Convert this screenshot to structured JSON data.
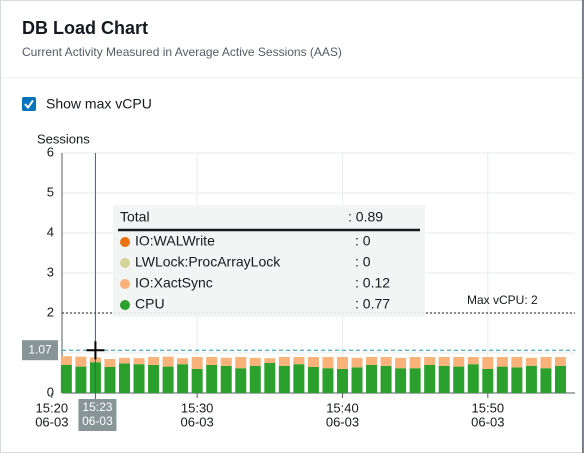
{
  "header": {
    "title": "DB Load Chart",
    "subtitle": "Current Activity Measured in Average Active Sessions (AAS)"
  },
  "checkbox": {
    "label": "Show max vCPU",
    "checked": true
  },
  "chart_data": {
    "type": "stacked-bar",
    "y_label": "Sessions",
    "xlim": [
      20.7,
      56
    ],
    "xticks": [
      {
        "value": 20,
        "label": "15:20",
        "date": "06-03"
      },
      {
        "value": 30,
        "label": "15:30",
        "date": "06-03"
      },
      {
        "value": 40,
        "label": "15:40",
        "date": "06-03"
      },
      {
        "value": 50,
        "label": "15:50",
        "date": "06-03"
      }
    ],
    "ylim": [
      0,
      6
    ],
    "yticks": [
      0,
      1,
      2,
      3,
      4,
      5,
      6
    ],
    "grid": true,
    "x": [
      21,
      22,
      23,
      24,
      25,
      26,
      27,
      28,
      29,
      30,
      31,
      32,
      33,
      34,
      35,
      36,
      37,
      38,
      39,
      40,
      41,
      42,
      43,
      44,
      45,
      46,
      47,
      48,
      49,
      50,
      51,
      52,
      53,
      54,
      55
    ],
    "series": [
      {
        "name": "CPU",
        "color": "#2ca02c",
        "values": [
          0.7,
          0.66,
          0.77,
          0.65,
          0.74,
          0.72,
          0.7,
          0.66,
          0.72,
          0.6,
          0.7,
          0.68,
          0.62,
          0.68,
          0.75,
          0.68,
          0.72,
          0.65,
          0.62,
          0.6,
          0.64,
          0.7,
          0.68,
          0.62,
          0.62,
          0.7,
          0.68,
          0.66,
          0.72,
          0.6,
          0.66,
          0.64,
          0.68,
          0.62,
          0.68
        ]
      },
      {
        "name": "IO:XactSync",
        "color": "#f8b27a",
        "values": [
          0.22,
          0.25,
          0.12,
          0.2,
          0.14,
          0.15,
          0.2,
          0.25,
          0.15,
          0.3,
          0.2,
          0.2,
          0.28,
          0.2,
          0.12,
          0.22,
          0.18,
          0.25,
          0.28,
          0.3,
          0.24,
          0.2,
          0.22,
          0.26,
          0.28,
          0.2,
          0.22,
          0.24,
          0.18,
          0.3,
          0.24,
          0.26,
          0.2,
          0.28,
          0.22
        ]
      }
    ],
    "max_vcpu": {
      "value": 2,
      "label": "Max vCPU: 2"
    },
    "crosshair": {
      "x": 23,
      "x_label": "15:23",
      "date_label": "06-03",
      "y": 1.07
    },
    "tooltip": {
      "title": "Total",
      "total": 0.89,
      "total_label": ": 0.89",
      "items": [
        {
          "name": "IO:WALWrite",
          "color": "#ec7211",
          "value": 0,
          "value_label": ": 0"
        },
        {
          "name": "LWLock:ProcArrayLock",
          "color": "#d5d59a",
          "value": 0,
          "value_label": ": 0"
        },
        {
          "name": "IO:XactSync",
          "color": "#f8b27a",
          "value": 0.12,
          "value_label": ": 0.12"
        },
        {
          "name": "CPU",
          "color": "#2ca02c",
          "value": 0.77,
          "value_label": ": 0.77"
        }
      ]
    }
  }
}
